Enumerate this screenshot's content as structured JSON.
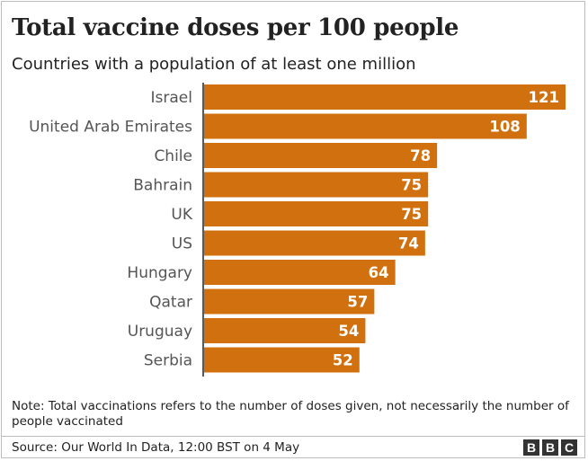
{
  "title": "Total vaccine doses per 100 people",
  "subtitle": "Countries with a population of at least one million",
  "note": "Note: Total vaccinations refers to the number of doses given, not necessarily the number of people vaccinated",
  "source": "Source: Our World In Data, 12:00 BST on 4 May",
  "logo": [
    "B",
    "B",
    "C"
  ],
  "colors": {
    "bar": "#d1700e",
    "bar_label": "#ffffff",
    "category_label": "#555555",
    "axis": "#222222"
  },
  "chart_data": {
    "type": "bar",
    "orientation": "horizontal",
    "categories": [
      "Israel",
      "United Arab Emirates",
      "Chile",
      "Bahrain",
      "UK",
      "US",
      "Hungary",
      "Qatar",
      "Uruguay",
      "Serbia"
    ],
    "values": [
      121,
      108,
      78,
      75,
      75,
      74,
      64,
      57,
      54,
      52
    ],
    "data_labels": [
      "121",
      "108",
      "78",
      "75",
      "75",
      "74",
      "64",
      "57",
      "54",
      "52"
    ],
    "xlim": [
      0,
      121
    ],
    "grid": false,
    "legend": "none"
  }
}
